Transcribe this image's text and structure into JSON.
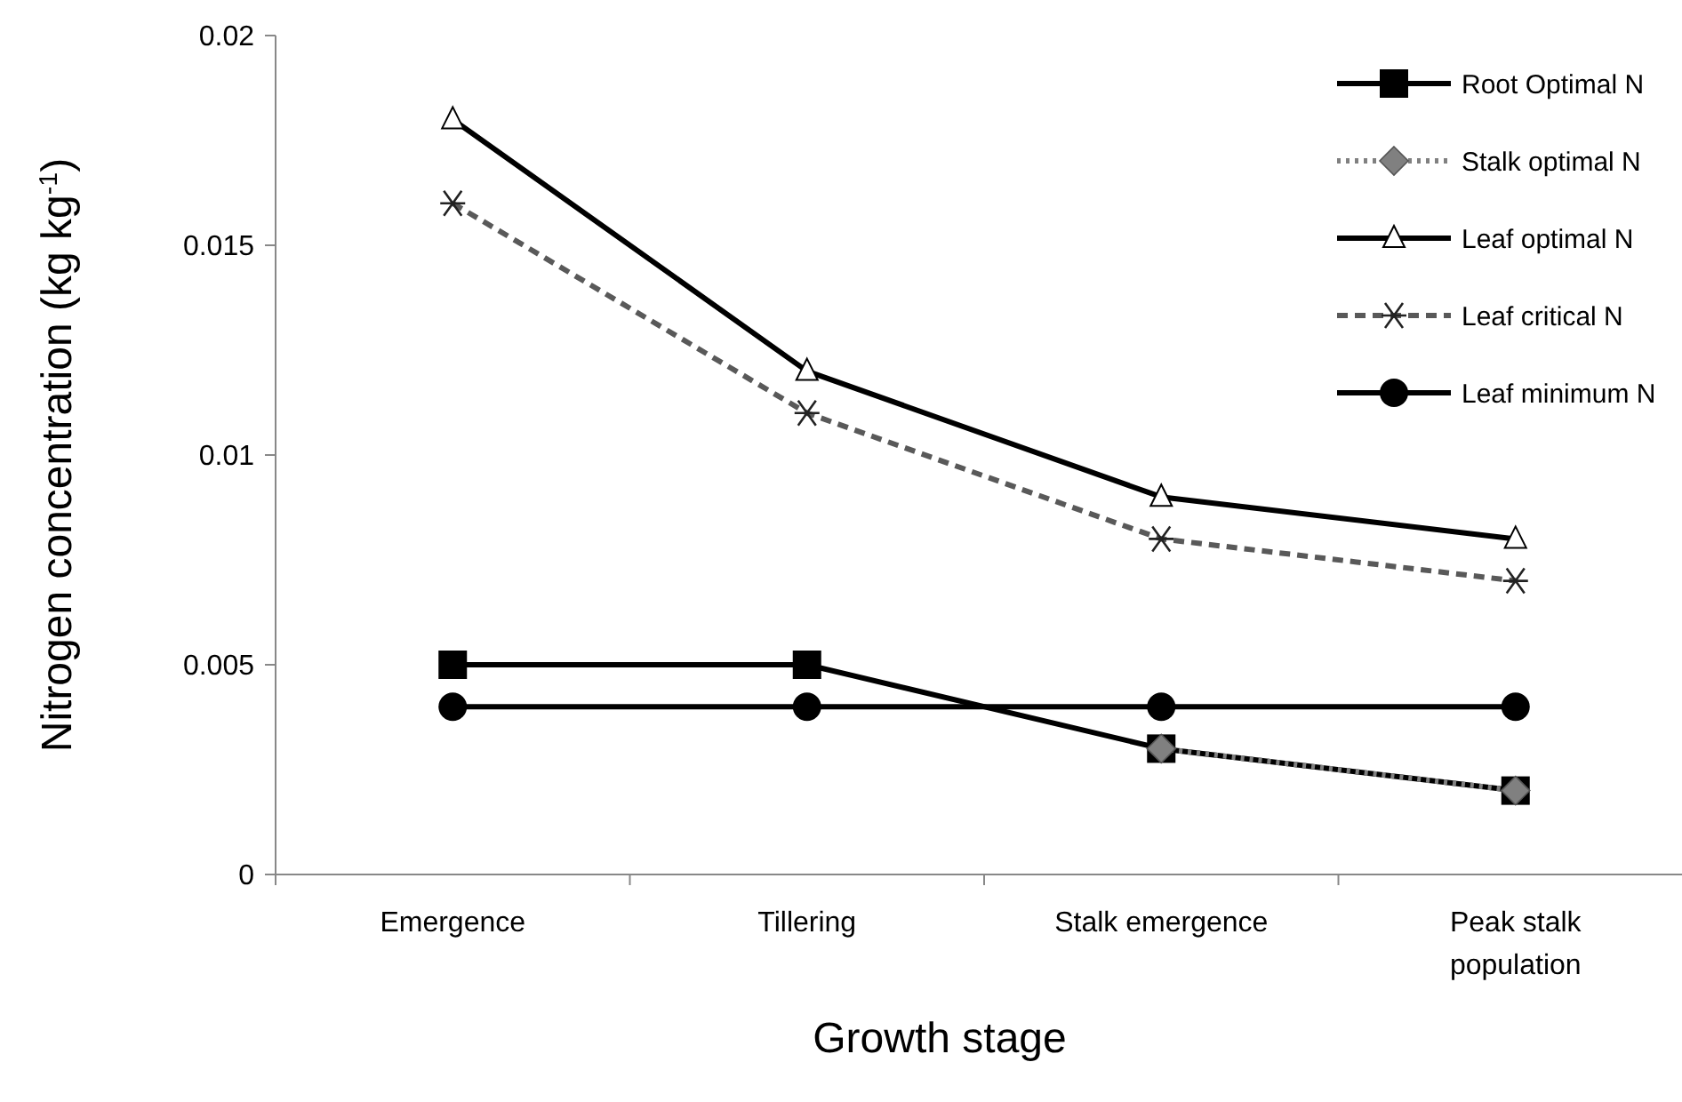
{
  "chart_data": {
    "type": "line",
    "xlabel": "Growth stage",
    "ylabel": "Nitrogen concentration (kg kg$^{-1}$)",
    "categories": [
      "Emergence",
      "Tillering",
      "Stalk emergence",
      "Peak stalk population"
    ],
    "ylim": [
      0,
      0.02
    ],
    "yticks": [
      0,
      0.005,
      0.01,
      0.015,
      0.02
    ],
    "grid": false,
    "legend": "top right",
    "series": [
      {
        "name": "Root Optimal N",
        "color": "#000000",
        "marker": "square",
        "line_style": "solid",
        "values": [
          0.005,
          0.005,
          0.003,
          0.002
        ]
      },
      {
        "name": "Stalk optimal N",
        "color": "#808080",
        "marker": "diamond",
        "line_style": "dotted",
        "values": [
          null,
          null,
          0.003,
          0.002
        ]
      },
      {
        "name": "Leaf optimal N",
        "color": "#000000",
        "marker": "triangle",
        "line_style": "solid",
        "values": [
          0.018,
          0.012,
          0.009,
          0.008
        ]
      },
      {
        "name": "Leaf critical N",
        "color": "#595959",
        "marker": "cross",
        "line_style": "dashed",
        "values": [
          0.016,
          0.011,
          0.008,
          0.007
        ]
      },
      {
        "name": "Leaf minimum N",
        "color": "#000000",
        "marker": "circle",
        "line_style": "solid",
        "values": [
          0.004,
          0.004,
          0.004,
          0.004
        ]
      }
    ]
  }
}
